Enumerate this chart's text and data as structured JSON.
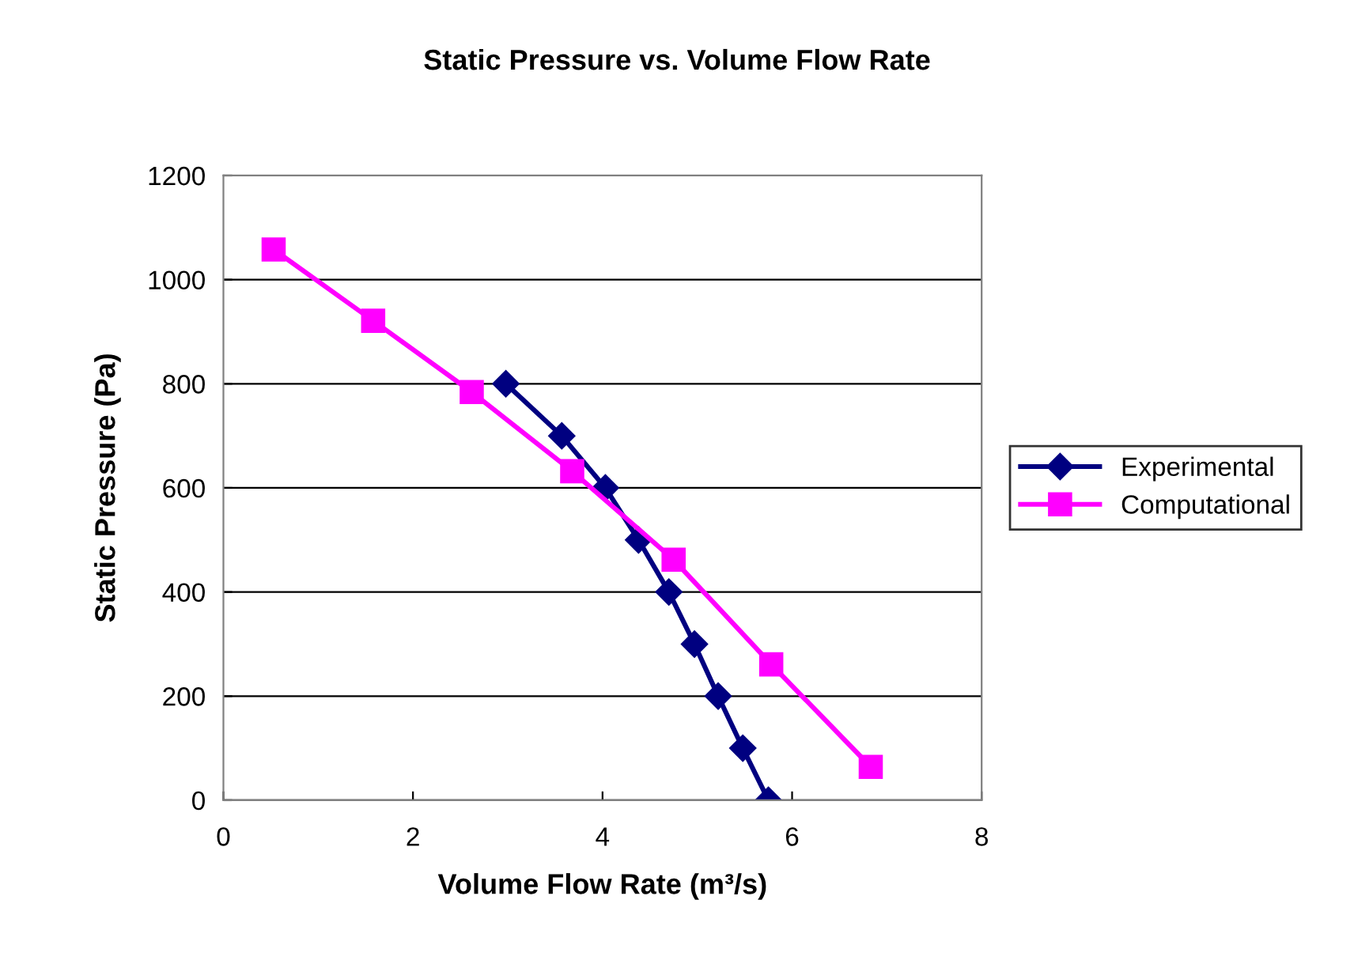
{
  "chart_data": {
    "type": "line",
    "title": "Static Pressure vs. Volume Flow Rate",
    "xlabel": "Volume Flow Rate (m³/s)",
    "ylabel": "Static Pressure (Pa)",
    "xlim": [
      0,
      8
    ],
    "xticks": [
      0,
      2,
      4,
      6,
      8
    ],
    "ylim": [
      0,
      1200
    ],
    "yticks": [
      0,
      200,
      400,
      600,
      800,
      1000,
      1200
    ],
    "grid": "y",
    "legend": "right",
    "line_style": "solid",
    "series": [
      {
        "name": "Experimental",
        "color": "#000080",
        "marker": "diamond",
        "x": [
          2.98,
          3.57,
          4.03,
          4.38,
          4.7,
          4.97,
          5.22,
          5.48,
          5.75
        ],
        "values": [
          800,
          700,
          600,
          500,
          400,
          300,
          200,
          100,
          0
        ]
      },
      {
        "name": "Computational",
        "color": "#ff00ff",
        "marker": "square",
        "x": [
          0.53,
          1.58,
          2.62,
          3.68,
          4.75,
          5.78,
          6.83
        ],
        "values": [
          1058,
          921,
          784,
          632,
          462,
          261,
          64
        ]
      }
    ]
  }
}
